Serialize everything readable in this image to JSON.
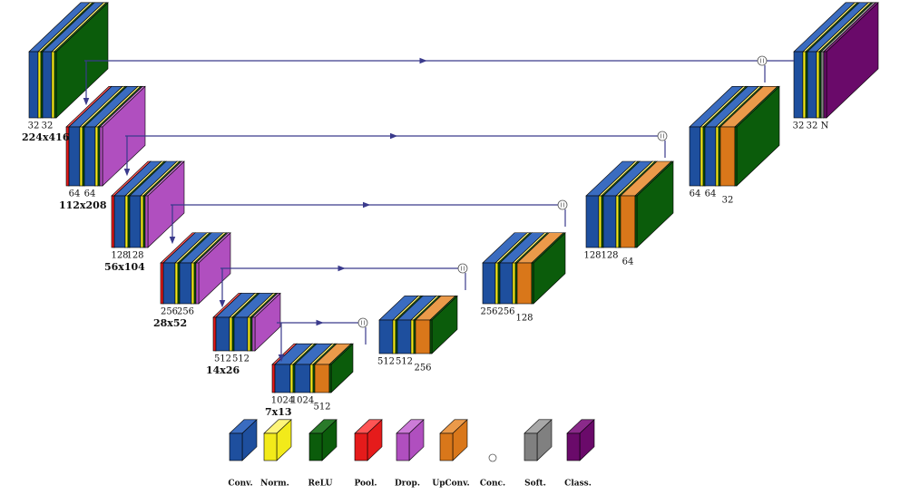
{
  "encoder": [
    {
      "channels": [
        "32",
        "32"
      ],
      "size": "224x416"
    },
    {
      "channels": [
        "64",
        "64"
      ],
      "size": "112x208"
    },
    {
      "channels": [
        "128",
        "128"
      ],
      "size": "56x104"
    },
    {
      "channels": [
        "256",
        "256"
      ],
      "size": "28x52"
    },
    {
      "channels": [
        "512",
        "512"
      ],
      "size": "14x26"
    }
  ],
  "bottleneck": {
    "channels": [
      "1024",
      "1024"
    ],
    "size": "7x13",
    "upconv": "512"
  },
  "decoder": [
    {
      "channels": [
        "512",
        "512"
      ],
      "upconv": "256"
    },
    {
      "channels": [
        "256",
        "256"
      ],
      "upconv": "128"
    },
    {
      "channels": [
        "128",
        "128"
      ],
      "upconv": "64"
    },
    {
      "channels": [
        "64",
        "64"
      ],
      "upconv": "32"
    },
    {
      "channels": [
        "32",
        "32",
        "N"
      ]
    }
  ],
  "legend": [
    "Conv.",
    "Norm.",
    "ReLU",
    "Pool.",
    "Drop.",
    "UpConv.",
    "Conc.",
    "Soft.",
    "Class."
  ]
}
